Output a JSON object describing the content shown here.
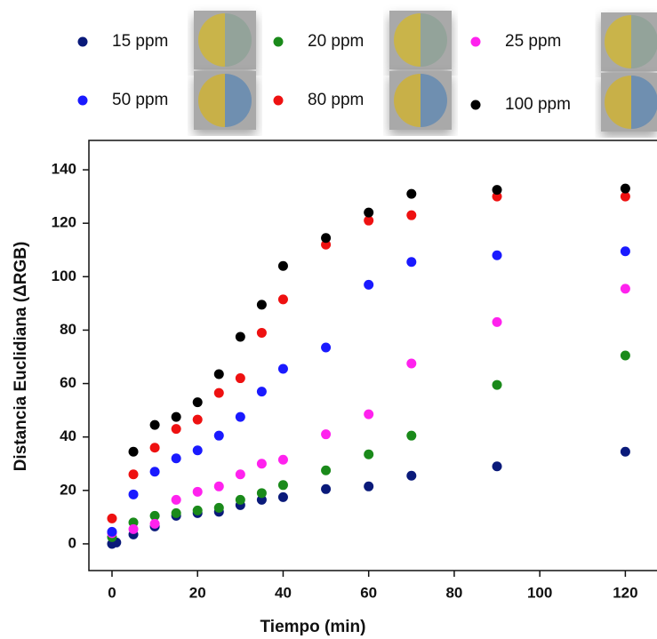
{
  "chart_data": {
    "type": "scatter",
    "x_label": "Tiempo (min)",
    "y_label": "Distancia Euclidiana (ΔRGB)",
    "xlim": [
      -5.4,
      127.4
    ],
    "ylim": [
      -10,
      151
    ],
    "xticks": [
      0,
      20,
      40,
      60,
      80,
      100,
      120
    ],
    "yticks": [
      0,
      20,
      40,
      60,
      80,
      100,
      120,
      140
    ],
    "series": [
      {
        "name": "15 ppm",
        "color": "#0a1a7a",
        "x": [
          0,
          1,
          5,
          10,
          15,
          20,
          25,
          30,
          35,
          40,
          50,
          60,
          70,
          90,
          120
        ],
        "values": [
          0,
          0.5,
          3.5,
          6.5,
          10.5,
          11.5,
          12,
          14.5,
          16.5,
          17.5,
          20.5,
          21.5,
          25.5,
          29,
          34.5
        ]
      },
      {
        "name": "20 ppm",
        "color": "#1a8a1a",
        "x": [
          0,
          5,
          10,
          15,
          20,
          25,
          30,
          35,
          40,
          50,
          60,
          70,
          90,
          120
        ],
        "values": [
          2.5,
          8,
          10.5,
          11.5,
          12.5,
          13.5,
          16.5,
          19,
          22,
          27.5,
          33.5,
          40.5,
          59.5,
          70.5
        ]
      },
      {
        "name": "25 ppm",
        "color": "#ff22ee",
        "x": [
          0,
          5,
          10,
          15,
          20,
          25,
          30,
          35,
          40,
          50,
          60,
          70,
          90,
          120
        ],
        "values": [
          4,
          5.5,
          7.5,
          16.5,
          19.5,
          21.5,
          26,
          30,
          31.5,
          41,
          48.5,
          67.5,
          83,
          95.5
        ]
      },
      {
        "name": "50 ppm",
        "color": "#1a1aff",
        "x": [
          0,
          5,
          10,
          15,
          20,
          25,
          30,
          35,
          40,
          50,
          60,
          70,
          90,
          120
        ],
        "values": [
          4.5,
          18.5,
          27,
          32,
          35,
          40.5,
          47.5,
          57,
          65.5,
          73.5,
          97,
          105.5,
          108,
          109.5
        ]
      },
      {
        "name": "80 ppm",
        "color": "#ee1111",
        "x": [
          0,
          5,
          10,
          15,
          20,
          25,
          30,
          35,
          40,
          50,
          60,
          70,
          90,
          120
        ],
        "values": [
          9.5,
          26,
          36,
          43,
          46.5,
          56.5,
          62,
          79,
          91.5,
          112,
          121,
          123,
          130,
          130
        ]
      },
      {
        "name": "100 ppm",
        "color": "#000000",
        "x": [
          5,
          10,
          15,
          20,
          25,
          30,
          35,
          40,
          50,
          60,
          70,
          90,
          120
        ],
        "values": [
          34.5,
          44.5,
          47.5,
          53,
          63.5,
          77.5,
          89.5,
          104,
          114.5,
          124,
          131,
          132.5,
          133
        ]
      }
    ]
  }
}
